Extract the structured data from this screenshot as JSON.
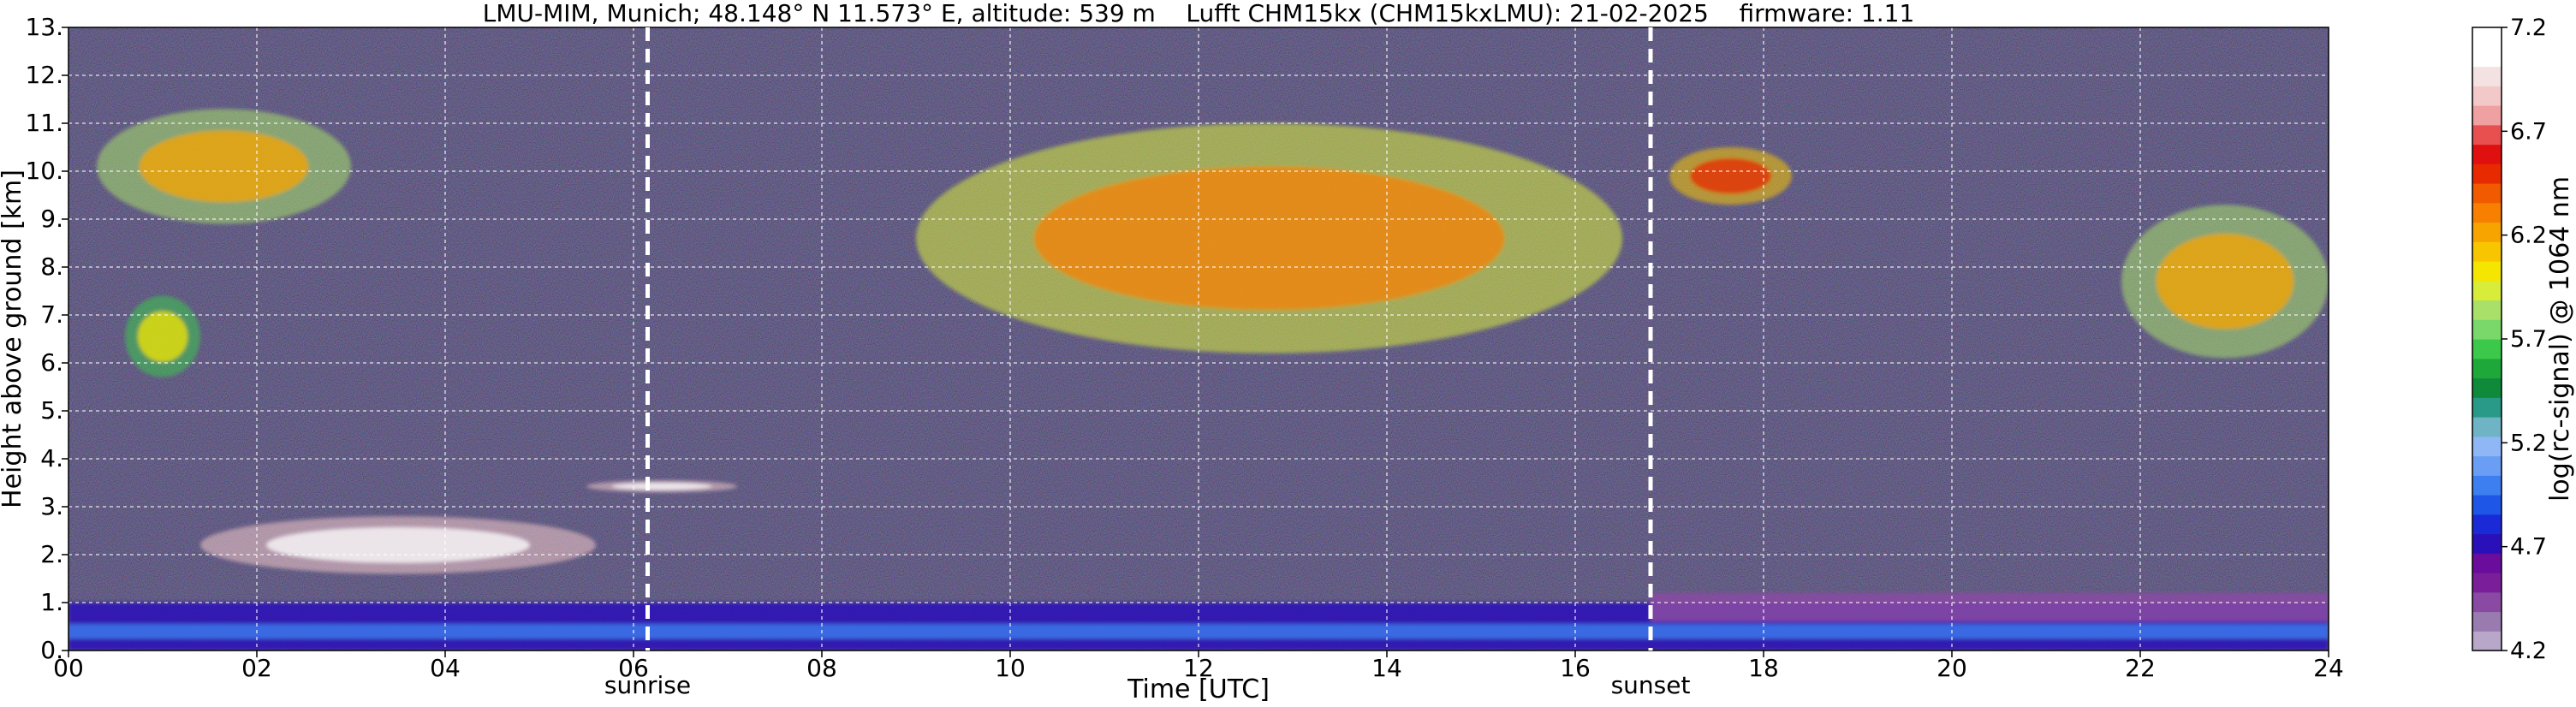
{
  "chart_data": {
    "type": "heatmap",
    "title": "LMU-MIM, Munich; 48.148° N 11.573° E, altitude: 539 m    Lufft CHM15kx (CHM15kxLMU): 21-02-2025    firmware: 1.11",
    "xlabel": "Time [UTC]",
    "ylabel": "Height above ground [km]",
    "xlim": [
      0,
      24
    ],
    "ylim": [
      0,
      13
    ],
    "xticks": [
      0,
      2,
      4,
      6,
      8,
      10,
      12,
      14,
      16,
      18,
      20,
      22,
      24
    ],
    "xtick_labels": [
      "00",
      "02",
      "04",
      "06",
      "08",
      "10",
      "12",
      "14",
      "16",
      "18",
      "20",
      "22",
      "24"
    ],
    "yticks": [
      0,
      1,
      2,
      3,
      4,
      5,
      6,
      7,
      8,
      9,
      10,
      11,
      12,
      13
    ],
    "ytick_labels": [
      "0.",
      "1.",
      "2.",
      "3.",
      "4.",
      "5.",
      "6.",
      "7.",
      "8.",
      "9.",
      "10.",
      "11.",
      "12.",
      "13."
    ],
    "grid": true,
    "background_color": "#1c1745",
    "annotations": [
      {
        "label": "sunrise",
        "time": 6.15
      },
      {
        "label": "sunset",
        "time": 16.8
      }
    ],
    "colorbar": {
      "label": "log(rc-signal) @ 1064 nm",
      "range": [
        4.2,
        7.2
      ],
      "ticks": [
        4.2,
        4.7,
        5.2,
        5.7,
        6.2,
        6.7,
        7.2
      ],
      "tick_labels": [
        "4.2",
        "4.7",
        "5.2",
        "5.7",
        "6.2",
        "6.7",
        "7.2"
      ],
      "colors": [
        "#b8a7c9",
        "#9a7bb0",
        "#8a4aa3",
        "#7a1f99",
        "#6a0d9c",
        "#2a10b8",
        "#1a2ad6",
        "#1e56e8",
        "#3d7ff0",
        "#6a9ef5",
        "#8fb6f5",
        "#6fb4c4",
        "#2a9a88",
        "#0f8a3a",
        "#1fa83a",
        "#3cc84a",
        "#7ad86a",
        "#a8e06a",
        "#d8ec3a",
        "#f4e600",
        "#f7c600",
        "#f8a400",
        "#f78000",
        "#f25a00",
        "#e82a00",
        "#e01010",
        "#e85050",
        "#efa0a0",
        "#f2c8c8",
        "#f4e2e2",
        "#ffffff",
        "#ffffff"
      ]
    },
    "features": [
      {
        "kind": "aerosol boundary layer",
        "t": [
          0,
          24
        ],
        "h": [
          0.0,
          1.0
        ],
        "level": 4.7
      },
      {
        "kind": "residual layer (evening)",
        "t": [
          16.8,
          24
        ],
        "h": [
          0.6,
          1.2
        ],
        "level": 4.4
      },
      {
        "kind": "low cloud",
        "t": [
          1.4,
          5.6
        ],
        "h": [
          1.6,
          2.8
        ],
        "level": 7.2
      },
      {
        "kind": "low cloud",
        "t": [
          5.5,
          7.1
        ],
        "h": [
          3.3,
          3.55
        ],
        "level": 7.2
      },
      {
        "kind": "cirrus",
        "t": [
          0.3,
          3.0
        ],
        "h": [
          8.9,
          11.3
        ],
        "level": 6.2
      },
      {
        "kind": "cirrus",
        "t": [
          0.6,
          1.4
        ],
        "h": [
          5.7,
          7.4
        ],
        "level": 6.0
      },
      {
        "kind": "cirrus",
        "t": [
          9.0,
          16.5
        ],
        "h": [
          6.2,
          11.0
        ],
        "level": 6.3
      },
      {
        "kind": "cirrus",
        "t": [
          17.0,
          18.3
        ],
        "h": [
          9.3,
          10.5
        ],
        "level": 6.5
      },
      {
        "kind": "cirrus",
        "t": [
          21.8,
          24.0
        ],
        "h": [
          6.1,
          9.3
        ],
        "level": 6.2
      }
    ]
  }
}
